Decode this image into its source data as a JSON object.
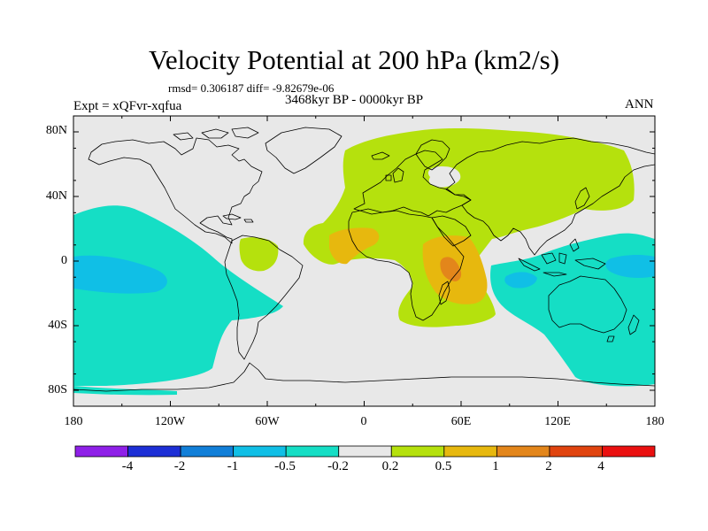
{
  "title": "Velocity Potential at 200 hPa (km2/s)",
  "stats": "rmsd= 0.306187 diff= -9.82679e-06",
  "period": "3468kyr BP - 0000kyr BP",
  "experiment": "Expt = xQFvr-xqfua",
  "season": "ANN",
  "map": {
    "projection": "cylindrical equidistant",
    "lon_range": [
      -180,
      180
    ],
    "lat_range": [
      -90,
      90
    ],
    "lat_ticks": [
      "80N",
      "40N",
      "0",
      "40S",
      "80S"
    ],
    "lon_ticks": [
      "180",
      "120W",
      "60W",
      "0",
      "60E",
      "120E",
      "180"
    ],
    "ocean_color": "#e8e8e8",
    "coast_color": "#000000"
  },
  "colorbar": {
    "labels": [
      "-4",
      "-2",
      "-1",
      "-0.5",
      "-0.2",
      "0.2",
      "0.5",
      "1",
      "2",
      "4"
    ],
    "colors": [
      "#8f20e8",
      "#1d2fd6",
      "#117fd8",
      "#10bfe6",
      "#15dec5",
      "#e8e8e8",
      "#b5e10d",
      "#e7b80e",
      "#e3861b",
      "#e0440f",
      "#ea1010"
    ]
  }
}
